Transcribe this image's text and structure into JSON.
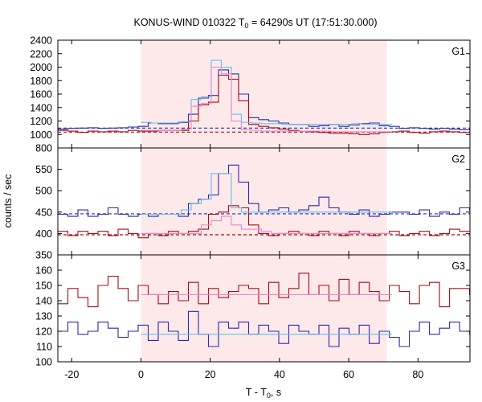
{
  "chart_data": {
    "type": "line",
    "title_main": "KONUS-WIND 010322 T",
    "title_sub": "0",
    "title_rest": " = 64290s UT (17:51:30.000)",
    "xlabel_main": "T - T",
    "xlabel_sub": "0",
    "xlabel_rest": ", s",
    "ylabel": "counts / sec",
    "xlim": [
      -24,
      95
    ],
    "x_ticks": [
      -20,
      0,
      20,
      40,
      60,
      80
    ],
    "interval_shade": {
      "from": 0,
      "to": 71,
      "color": "#fde8ea"
    },
    "step": 2.9,
    "colors": {
      "dark_red": "#a50f15",
      "pink": "#e68ac8",
      "dark_blue": "#2b2ba8",
      "light_blue": "#62c2ea"
    },
    "panels": [
      {
        "id": "G1",
        "label": "G1",
        "ylim": [
          800,
          2400
        ],
        "y_ticks": [
          800,
          1000,
          1200,
          1400,
          1600,
          1800,
          2000,
          2200,
          2400
        ],
        "series": [
          {
            "key": "upper_main",
            "style": "dark_blue",
            "x0": -24,
            "values": [
              1080,
              1090,
              1095,
              1100,
              1090,
              1095,
              1100,
              1110,
              1120,
              1170,
              1160,
              1160,
              1180,
              1300,
              1540,
              1580,
              1960,
              1900,
              1600,
              1250,
              1220,
              1200,
              1170,
              1150,
              1150,
              1120,
              1130,
              1150,
              1120,
              1140,
              1160,
              1170,
              1130,
              1120,
              1090,
              1100,
              1090,
              1080,
              1090,
              1080,
              1070,
              1080
            ]
          },
          {
            "key": "lower_main",
            "style": "dark_red",
            "x0": -24,
            "values": [
              1060,
              1050,
              1030,
              1050,
              1040,
              1050,
              1040,
              1060,
              1050,
              1050,
              1060,
              1060,
              1060,
              1200,
              1440,
              1480,
              1880,
              1820,
              1500,
              1150,
              1120,
              1100,
              1080,
              1060,
              1050,
              1040,
              1030,
              1020,
              1020,
              1010,
              1000,
              1010,
              1030,
              1040,
              1050,
              1030,
              1020,
              1040,
              1050,
              1040,
              1030,
              1040
            ]
          },
          {
            "key": "upper_fit",
            "style": "light_blue",
            "x0": 0,
            "values": [
              1180,
              1170,
              1170,
              1170,
              1190,
              1520,
              1560,
              2100,
              2000,
              1300,
              1180,
              1170,
              1160,
              1160,
              1150,
              1150,
              1150,
              1150,
              1150,
              1150,
              1150,
              1160,
              1150,
              1150,
              1150
            ]
          },
          {
            "key": "lower_fit",
            "style": "pink",
            "x0": 0,
            "values": [
              1060,
              1060,
              1060,
              1060,
              1080,
              1420,
              1460,
              2000,
              1900,
              1200,
              1070,
              1060,
              1050,
              1050,
              1050,
              1050,
              1050,
              1050,
              1050,
              1040,
              1040,
              1040,
              1040,
              1040,
              1040
            ]
          }
        ],
        "backgrounds": [
          {
            "style": "dark_blue",
            "level": 1095
          },
          {
            "style": "dark_red",
            "level": 1035
          }
        ]
      },
      {
        "id": "G2",
        "label": "G2",
        "ylim": [
          350,
          600
        ],
        "y_ticks": [
          350,
          400,
          450,
          500,
          550
        ],
        "series": [
          {
            "key": "upper_main",
            "style": "dark_blue",
            "x0": -24,
            "values": [
              445,
              440,
              455,
              440,
              445,
              460,
              445,
              440,
              445,
              440,
              445,
              445,
              440,
              470,
              480,
              490,
              540,
              560,
              520,
              470,
              450,
              455,
              460,
              450,
              455,
              465,
              485,
              460,
              450,
              445,
              455,
              440,
              445,
              450,
              450,
              445,
              455,
              440,
              450,
              445,
              460,
              455
            ]
          },
          {
            "key": "lower_main",
            "style": "dark_red",
            "x0": -24,
            "values": [
              405,
              395,
              405,
              400,
              405,
              395,
              410,
              400,
              390,
              400,
              395,
              405,
              400,
              405,
              410,
              445,
              450,
              465,
              460,
              420,
              400,
              395,
              400,
              405,
              400,
              395,
              405,
              400,
              395,
              405,
              400,
              395,
              400,
              405,
              395,
              400,
              405,
              395,
              400,
              410,
              405,
              405
            ]
          },
          {
            "key": "upper_fit",
            "style": "light_blue",
            "x0": 0,
            "values": [
              445,
              445,
              445,
              445,
              455,
              470,
              480,
              540,
              540,
              460,
              450,
              450,
              450,
              450,
              450,
              450,
              450,
              450,
              450,
              450,
              450,
              450,
              450,
              450,
              450
            ]
          },
          {
            "key": "lower_fit",
            "style": "pink",
            "x0": 0,
            "values": [
              400,
              400,
              400,
              400,
              400,
              400,
              420,
              430,
              440,
              420,
              410,
              410,
              405,
              400,
              400,
              400,
              400,
              400,
              400,
              400,
              400,
              400,
              400,
              400,
              400
            ]
          }
        ],
        "backgrounds": [
          {
            "style": "dark_blue",
            "level": 446
          },
          {
            "style": "dark_red",
            "level": 397
          }
        ]
      },
      {
        "id": "G3",
        "label": "G3",
        "ylim": [
          100,
          170
        ],
        "y_ticks": [
          100,
          110,
          120,
          130,
          140,
          150,
          160
        ],
        "series": [
          {
            "key": "upper_main",
            "style": "dark_red",
            "x0": -24,
            "values": [
              138,
              148,
              142,
              136,
              150,
              156,
              148,
              140,
              150,
              144,
              138,
              146,
              140,
              152,
              138,
              148,
              142,
              146,
              150,
              148,
              138,
              152,
              142,
              148,
              158,
              144,
              150,
              140,
              154,
              144,
              152,
              146,
              140,
              150,
              146,
              138,
              150,
              152,
              136,
              148,
              148,
              144
            ]
          },
          {
            "key": "lower_main",
            "style": "dark_blue",
            "x0": -24,
            "values": [
              120,
              126,
              118,
              120,
              126,
              122,
              116,
              120,
              124,
              114,
              126,
              120,
              114,
              133,
              118,
              110,
              126,
              122,
              126,
              118,
              124,
              120,
              112,
              124,
              120,
              118,
              124,
              110,
              122,
              118,
              124,
              112,
              120,
              116,
              110,
              120,
              126,
              118,
              122,
              126,
              120,
              118
            ]
          },
          {
            "key": "upper_fit",
            "style": "pink",
            "x0": 0,
            "values": [
              144,
              144,
              144,
              144,
              144,
              144,
              144,
              144,
              144,
              144,
              144,
              144,
              144,
              144,
              144,
              144,
              144,
              144,
              144,
              144,
              144,
              144,
              144,
              144,
              144
            ]
          },
          {
            "key": "lower_fit",
            "style": "light_blue",
            "x0": 0,
            "values": [
              118,
              118,
              118,
              118,
              118,
              118,
              118,
              118,
              118,
              118,
              118,
              118,
              118,
              118,
              118,
              118,
              118,
              118,
              118,
              118,
              118,
              118,
              118,
              118,
              118
            ]
          }
        ],
        "backgrounds": []
      }
    ]
  }
}
